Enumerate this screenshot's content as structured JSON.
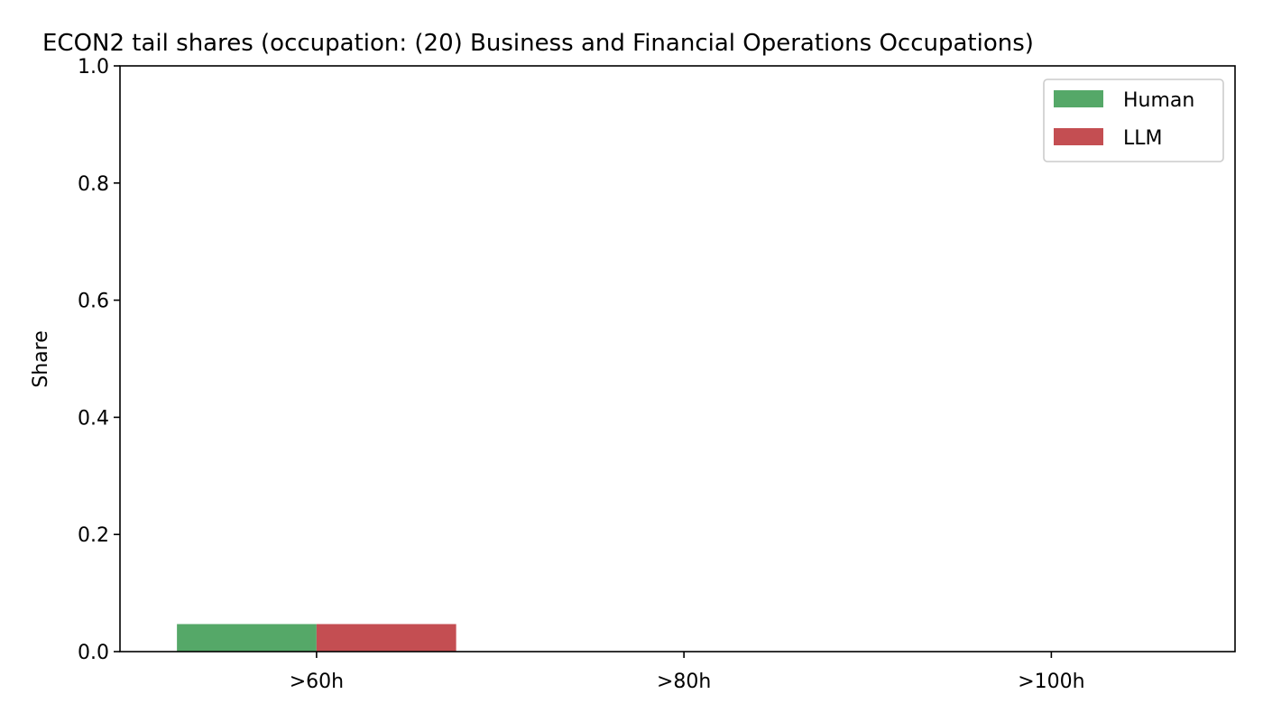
{
  "chart_data": {
    "type": "bar",
    "title": "ECON2 tail shares (occupation: (20) Business and Financial Operations Occupations)",
    "xlabel": "",
    "ylabel": "Share",
    "categories": [
      ">60h",
      ">80h",
      ">100h"
    ],
    "series": [
      {
        "name": "Human",
        "color": "#55a868",
        "values": [
          0.047,
          0.0,
          0.0
        ]
      },
      {
        "name": "LLM",
        "color": "#c44e52",
        "values": [
          0.047,
          0.0,
          0.0
        ]
      }
    ],
    "ylim": [
      0,
      1.0
    ],
    "yticks": [
      0.0,
      0.2,
      0.4,
      0.6,
      0.8,
      1.0
    ],
    "ytick_labels": [
      "0.0",
      "0.2",
      "0.4",
      "0.6",
      "0.8",
      "1.0"
    ],
    "grid": false,
    "legend_position": "top-right"
  }
}
